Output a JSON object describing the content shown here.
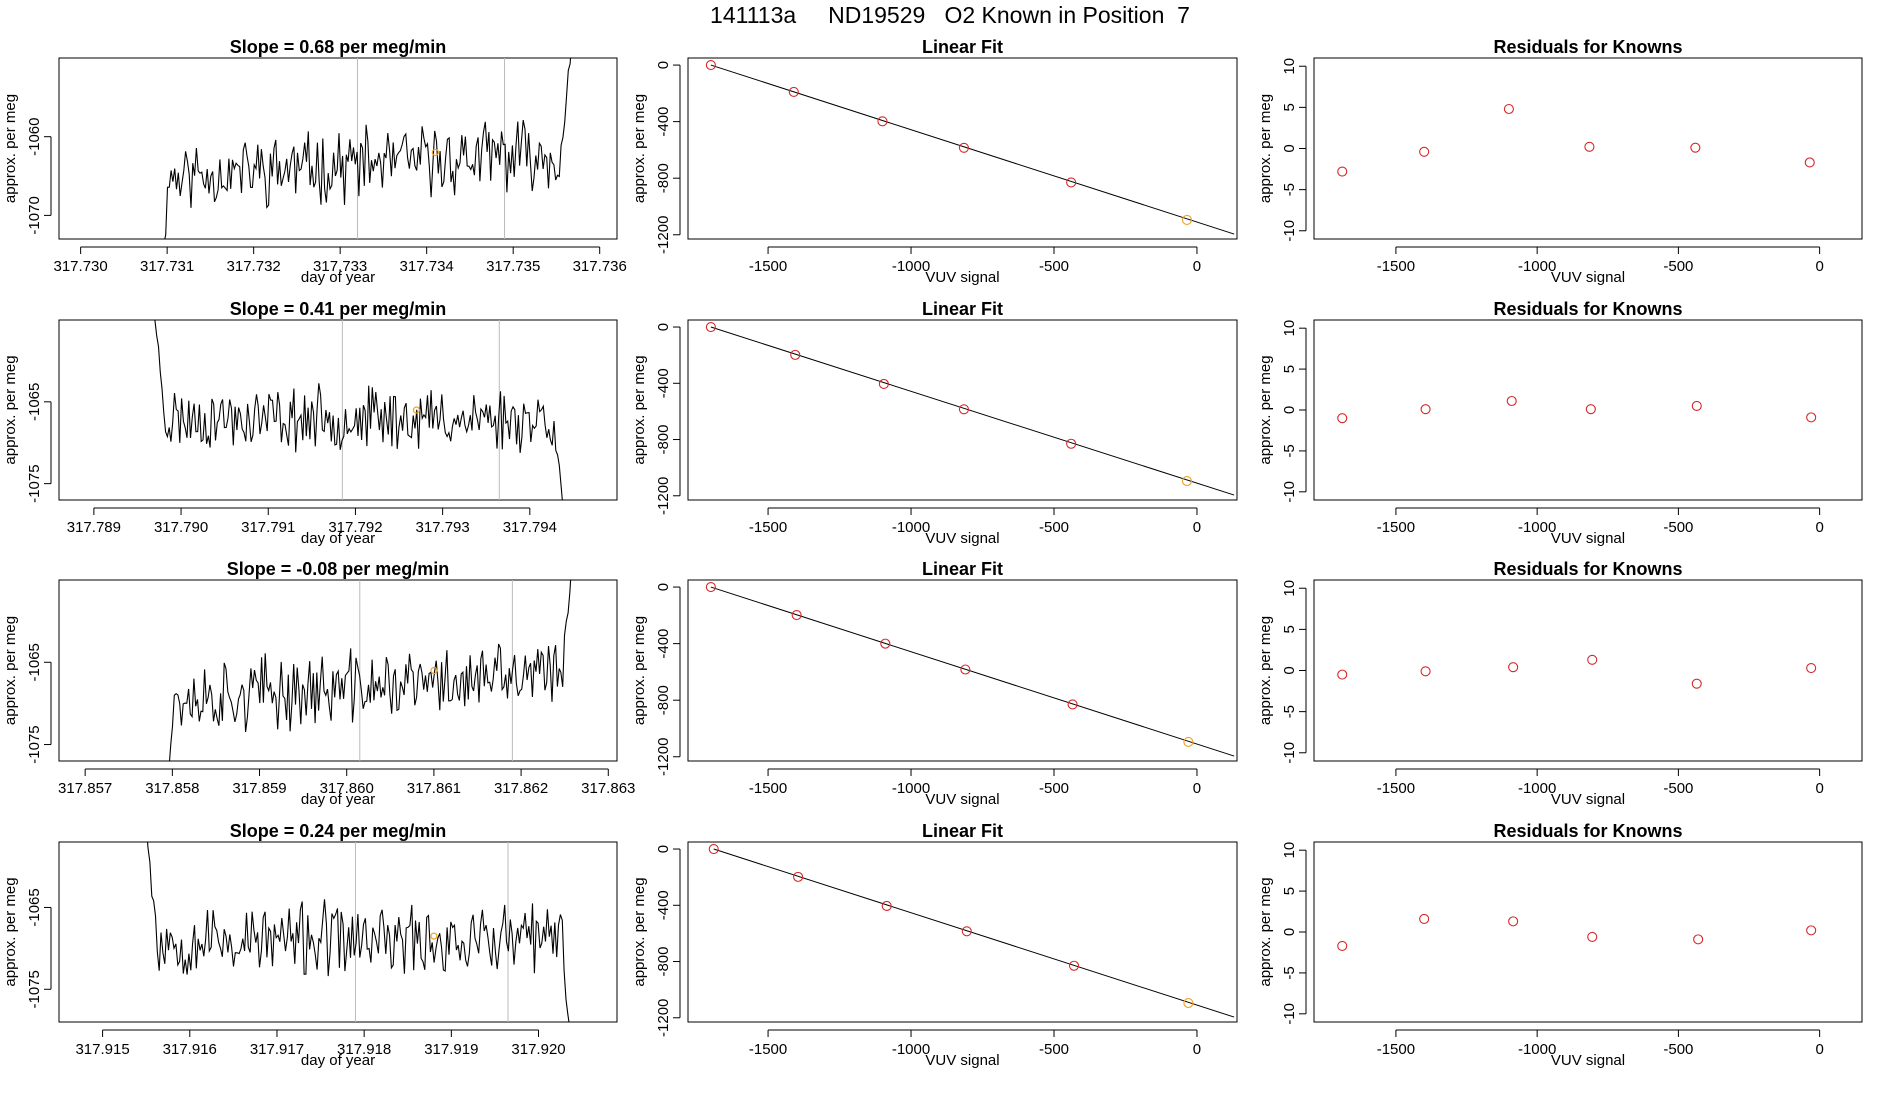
{
  "header": {
    "title": "141113a     ND19529   O2 Known in Position  7"
  },
  "colors": {
    "line": "#000000",
    "resid_point": "#d62728",
    "known_point": "#f0a020",
    "vline": "#bbbbbb"
  },
  "chart_data": [
    {
      "type": "line",
      "row": 0,
      "title": "Slope =  0.68  per meg/min",
      "xlabel": "day of year",
      "ylabel": "approx. per meg",
      "xlim": [
        317.72975,
        317.7362
      ],
      "ylim": [
        -1073.0,
        -1050.0
      ],
      "xticks": [
        "317.730",
        "317.731",
        "317.732",
        "317.733",
        "317.734",
        "317.735",
        "317.736"
      ],
      "xtick_values": [
        317.73,
        317.731,
        317.732,
        317.733,
        317.734,
        317.735,
        317.736
      ],
      "yticks": [
        "-1060",
        "-1070"
      ],
      "ytick_values": [
        -1060,
        -1070
      ],
      "vlines": [
        317.7332,
        317.7349
      ],
      "marker": {
        "x": 317.7341,
        "y": -1062
      },
      "series": {
        "x_start": 317.7309,
        "x_end": 317.7357,
        "base": -1063.5,
        "amp": 3.5,
        "seed": 11,
        "trend": 0.5,
        "lead_from": -1080,
        "tail_to": -1045
      }
    },
    {
      "type": "line",
      "row": 1,
      "title": "Slope =  0.41  per meg/min",
      "xlabel": "day of year",
      "ylabel": "approx. per meg",
      "xlim": [
        317.7886,
        317.795
      ],
      "ylim": [
        -1077.0,
        -1055.0
      ],
      "xticks": [
        "317.789",
        "317.790",
        "317.791",
        "317.792",
        "317.793",
        "317.794"
      ],
      "xtick_values": [
        317.789,
        317.79,
        317.791,
        317.792,
        317.793,
        317.794
      ],
      "yticks": [
        "-1065",
        "-1075"
      ],
      "ytick_values": [
        -1065,
        -1075
      ],
      "vlines": [
        317.79185,
        317.79365
      ],
      "marker": {
        "x": 317.7927,
        "y": -1066
      },
      "series": {
        "x_start": 317.7897,
        "x_end": 317.7944,
        "base": -1067.0,
        "amp": 3.0,
        "seed": 23,
        "trend": 0.0,
        "lead_from": -1055,
        "tail_to": -1080
      }
    },
    {
      "type": "line",
      "row": 2,
      "title": "Slope =  -0.08  per meg/min",
      "xlabel": "day of year",
      "ylabel": "approx. per meg",
      "xlim": [
        317.8567,
        317.8631
      ],
      "ylim": [
        -1077.0,
        -1055.0
      ],
      "xticks": [
        "317.857",
        "317.858",
        "317.859",
        "317.860",
        "317.861",
        "317.862",
        "317.863"
      ],
      "xtick_values": [
        317.857,
        317.858,
        317.859,
        317.86,
        317.861,
        317.862,
        317.863
      ],
      "yticks": [
        "-1065",
        "-1075"
      ],
      "ytick_values": [
        -1065,
        -1075
      ],
      "vlines": [
        317.86015,
        317.8619
      ],
      "marker": {
        "x": 317.861,
        "y": -1066
      },
      "series": {
        "x_start": 317.8579,
        "x_end": 317.8626,
        "base": -1068.0,
        "amp": 3.5,
        "seed": 37,
        "trend": 0.5,
        "lead_from": -1085,
        "tail_to": -1050
      }
    },
    {
      "type": "line",
      "row": 3,
      "title": "Slope =  0.24  per meg/min",
      "xlabel": "day of year",
      "ylabel": "approx. per meg",
      "xlim": [
        317.9145,
        317.9209
      ],
      "ylim": [
        -1079.0,
        -1057.0
      ],
      "xticks": [
        "317.915",
        "317.916",
        "317.917",
        "317.918",
        "317.919",
        "317.920"
      ],
      "xtick_values": [
        317.915,
        317.916,
        317.917,
        317.918,
        317.919,
        317.92
      ],
      "yticks": [
        "-1065",
        "-1075"
      ],
      "ytick_values": [
        -1065,
        -1075
      ],
      "vlines": [
        317.9179,
        317.91965
      ],
      "marker": {
        "x": 317.9188,
        "y": -1068.5
      },
      "series": {
        "x_start": 317.9155,
        "x_end": 317.9204,
        "base": -1069.0,
        "amp": 3.5,
        "seed": 53,
        "trend": 0.0,
        "lead_from": -1055,
        "tail_to": -1085
      }
    },
    {
      "type": "scatter",
      "row": 0,
      "title": "Linear Fit",
      "xlabel": "VUV signal",
      "ylabel": "approx. per meg",
      "xlim": [
        -1780,
        140
      ],
      "ylim": [
        -1230,
        50
      ],
      "xticks": [
        "-1500",
        "-1000",
        "-500",
        "0"
      ],
      "xtick_values": [
        -1500,
        -1000,
        -500,
        0
      ],
      "yticks": [
        "0",
        "-400",
        "-800",
        "-1200"
      ],
      "ytick_values": [
        0,
        -400,
        -800,
        -1200
      ],
      "points": [
        [
          -1700,
          0
        ],
        [
          -1410,
          -190
        ],
        [
          -1100,
          -398
        ],
        [
          -815,
          -585
        ],
        [
          -440,
          -830
        ],
        [
          -35,
          -1095
        ]
      ],
      "known_index": 5,
      "fit_line": [
        [
          -1700,
          0
        ],
        [
          130,
          -1195
        ]
      ]
    },
    {
      "type": "scatter",
      "row": 1,
      "title": "Linear Fit",
      "xlabel": "VUV signal",
      "ylabel": "approx. per meg",
      "xlim": [
        -1780,
        140
      ],
      "ylim": [
        -1230,
        50
      ],
      "xticks": [
        "-1500",
        "-1000",
        "-500",
        "0"
      ],
      "xtick_values": [
        -1500,
        -1000,
        -500,
        0
      ],
      "yticks": [
        "0",
        "-400",
        "-800",
        "-1200"
      ],
      "ytick_values": [
        0,
        -400,
        -800,
        -1200
      ],
      "points": [
        [
          -1700,
          0
        ],
        [
          -1405,
          -198
        ],
        [
          -1095,
          -405
        ],
        [
          -815,
          -585
        ],
        [
          -440,
          -830
        ],
        [
          -35,
          -1095
        ]
      ],
      "known_index": 5,
      "fit_line": [
        [
          -1700,
          0
        ],
        [
          130,
          -1195
        ]
      ]
    },
    {
      "type": "scatter",
      "row": 2,
      "title": "Linear Fit",
      "xlabel": "VUV signal",
      "ylabel": "approx. per meg",
      "xlim": [
        -1780,
        140
      ],
      "ylim": [
        -1230,
        50
      ],
      "xticks": [
        "-1500",
        "-1000",
        "-500",
        "0"
      ],
      "xtick_values": [
        -1500,
        -1000,
        -500,
        0
      ],
      "yticks": [
        "0",
        "-400",
        "-800",
        "-1200"
      ],
      "ytick_values": [
        0,
        -400,
        -800,
        -1200
      ],
      "points": [
        [
          -1700,
          0
        ],
        [
          -1400,
          -198
        ],
        [
          -1090,
          -400
        ],
        [
          -810,
          -583
        ],
        [
          -435,
          -830
        ],
        [
          -30,
          -1095
        ]
      ],
      "known_index": 5,
      "fit_line": [
        [
          -1700,
          0
        ],
        [
          130,
          -1195
        ]
      ]
    },
    {
      "type": "scatter",
      "row": 3,
      "title": "Linear Fit",
      "xlabel": "VUV signal",
      "ylabel": "approx. per meg",
      "xlim": [
        -1780,
        140
      ],
      "ylim": [
        -1230,
        50
      ],
      "xticks": [
        "-1500",
        "-1000",
        "-500",
        "0"
      ],
      "xtick_values": [
        -1500,
        -1000,
        -500,
        0
      ],
      "yticks": [
        "0",
        "-400",
        "-800",
        "-1200"
      ],
      "ytick_values": [
        0,
        -400,
        -800,
        -1200
      ],
      "points": [
        [
          -1690,
          0
        ],
        [
          -1395,
          -198
        ],
        [
          -1085,
          -405
        ],
        [
          -805,
          -585
        ],
        [
          -430,
          -830
        ],
        [
          -30,
          -1095
        ]
      ],
      "known_index": 5,
      "fit_line": [
        [
          -1690,
          0
        ],
        [
          130,
          -1195
        ]
      ]
    },
    {
      "type": "scatter",
      "row": 0,
      "title": "Residuals for Knowns",
      "xlabel": "VUV signal",
      "ylabel": "approx. per meg",
      "xlim": [
        -1790,
        150
      ],
      "ylim": [
        -11,
        11
      ],
      "xticks": [
        "-1500",
        "-1000",
        "-500",
        "0"
      ],
      "xtick_values": [
        -1500,
        -1000,
        -500,
        0
      ],
      "yticks": [
        "10",
        "5",
        "0",
        "-5",
        "-10"
      ],
      "ytick_values": [
        10,
        5,
        0,
        -5,
        -10
      ],
      "points": [
        [
          -1690,
          -2.8
        ],
        [
          -1400,
          -0.4
        ],
        [
          -1100,
          4.8
        ],
        [
          -815,
          0.2
        ],
        [
          -440,
          0.1
        ],
        [
          -35,
          -1.7
        ]
      ]
    },
    {
      "type": "scatter",
      "row": 1,
      "title": "Residuals for Knowns",
      "xlabel": "VUV signal",
      "ylabel": "approx. per meg",
      "xlim": [
        -1790,
        150
      ],
      "ylim": [
        -11,
        11
      ],
      "xticks": [
        "-1500",
        "-1000",
        "-500",
        "0"
      ],
      "xtick_values": [
        -1500,
        -1000,
        -500,
        0
      ],
      "yticks": [
        "10",
        "5",
        "0",
        "-5",
        "-10"
      ],
      "ytick_values": [
        10,
        5,
        0,
        -5,
        -10
      ],
      "points": [
        [
          -1690,
          -1.0
        ],
        [
          -1395,
          0.1
        ],
        [
          -1090,
          1.1
        ],
        [
          -810,
          0.1
        ],
        [
          -435,
          0.5
        ],
        [
          -30,
          -0.9
        ]
      ]
    },
    {
      "type": "scatter",
      "row": 2,
      "title": "Residuals for Knowns",
      "xlabel": "VUV signal",
      "ylabel": "approx. per meg",
      "xlim": [
        -1790,
        150
      ],
      "ylim": [
        -11,
        11
      ],
      "xticks": [
        "-1500",
        "-1000",
        "-500",
        "0"
      ],
      "xtick_values": [
        -1500,
        -1000,
        -500,
        0
      ],
      "yticks": [
        "10",
        "5",
        "0",
        "-5",
        "-10"
      ],
      "ytick_values": [
        10,
        5,
        0,
        -5,
        -10
      ],
      "points": [
        [
          -1690,
          -0.5
        ],
        [
          -1395,
          -0.1
        ],
        [
          -1085,
          0.4
        ],
        [
          -805,
          1.3
        ],
        [
          -435,
          -1.6
        ],
        [
          -30,
          0.3
        ]
      ]
    },
    {
      "type": "scatter",
      "row": 3,
      "title": "Residuals for Knowns",
      "xlabel": "VUV signal",
      "ylabel": "approx. per meg",
      "xlim": [
        -1790,
        150
      ],
      "ylim": [
        -11,
        11
      ],
      "xticks": [
        "-1500",
        "-1000",
        "-500",
        "0"
      ],
      "xtick_values": [
        -1500,
        -1000,
        -500,
        0
      ],
      "yticks": [
        "10",
        "5",
        "0",
        "-5",
        "-10"
      ],
      "ytick_values": [
        10,
        5,
        0,
        -5,
        -10
      ],
      "points": [
        [
          -1690,
          -1.7
        ],
        [
          -1400,
          1.6
        ],
        [
          -1085,
          1.3
        ],
        [
          -805,
          -0.6
        ],
        [
          -430,
          -0.9
        ],
        [
          -30,
          0.2
        ]
      ]
    }
  ]
}
